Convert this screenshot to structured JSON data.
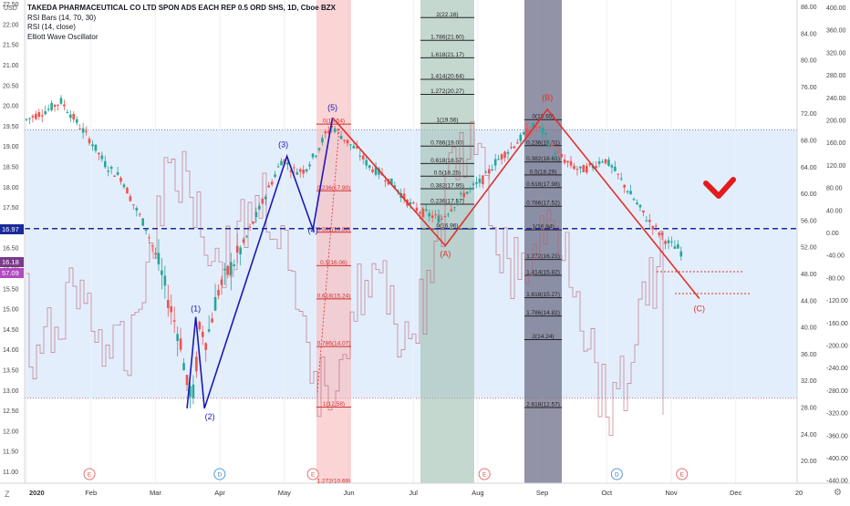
{
  "legend": {
    "title": "TAKEDA PHARMACEUTICAL CO LTD SPON ADS EACH REP 0.5 ORD SHS, 1D, Cboe BZX",
    "line2": "RSI Bars (14, 70, 30)",
    "line3": "RSI (14, close)",
    "line4": "Elliott Wave Oscillator"
  },
  "currency_label": "USD",
  "price_tags": {
    "last": "16.97",
    "close": "16.18",
    "rsi": "57.09"
  },
  "colors": {
    "up": "#26a69a",
    "down": "#ef5350",
    "wave_blue": "#1a1ab4",
    "wave_red": "#e0302a",
    "band": "#d9e8fb",
    "dashed": "#1a2a9a",
    "check": "#e31b1b"
  },
  "chart_data": {
    "type": "candlestick",
    "x_ticks": [
      "2020",
      "Feb",
      "Mar",
      "Apr",
      "May",
      "Jun",
      "Jul",
      "Aug",
      "Sep",
      "Oct",
      "Nov",
      "Dec",
      "20"
    ],
    "left_axis": [
      "22.50",
      "22.00",
      "21.50",
      "21.00",
      "20.50",
      "20.00",
      "19.50",
      "19.00",
      "18.50",
      "18.00",
      "17.50",
      "17.00",
      "16.50",
      "16.00",
      "15.50",
      "15.00",
      "14.50",
      "14.00",
      "13.50",
      "13.00",
      "12.50",
      "12.00",
      "11.50",
      "11.00"
    ],
    "right_axis_price": [
      "88.00",
      "84.00",
      "80.00",
      "76.00",
      "72.00",
      "68.00",
      "64.00",
      "60.00",
      "56.00",
      "52.00",
      "48.00",
      "44.00",
      "40.00",
      "36.00",
      "32.00",
      "28.00",
      "24.00",
      "20.00"
    ],
    "right_axis_osc": [
      "400.00",
      "360.00",
      "320.00",
      "280.00",
      "240.00",
      "200.00",
      "160.00",
      "120.00",
      "80.00",
      "40.00",
      "0.00",
      "-40.00",
      "-80.00",
      "-120.00",
      "-160.00",
      "-200.00",
      "-240.00",
      "-280.00",
      "-320.00",
      "-360.00",
      "-400.00",
      "-440.00"
    ],
    "close_price": 16.97,
    "band_upper": 19.4,
    "band_lower": 12.8,
    "wave_labels": [
      {
        "label": "(1)",
        "date": "2020-03-19",
        "price": 14.8,
        "color": "blue"
      },
      {
        "label": "(2)",
        "date": "2020-03-23",
        "price": 12.55,
        "color": "blue"
      },
      {
        "label": "(3)",
        "date": "2020-04-30",
        "price": 18.75,
        "color": "blue"
      },
      {
        "label": "(4)",
        "date": "2020-05-12",
        "price": 16.95,
        "color": "blue"
      },
      {
        "label": "(5)",
        "date": "2020-05-21",
        "price": 19.7,
        "color": "blue"
      },
      {
        "label": "(A)",
        "date": "2020-07-12",
        "price": 16.55,
        "color": "red"
      },
      {
        "label": "(B)",
        "date": "2020-08-28",
        "price": 19.9,
        "color": "red"
      },
      {
        "label": "(C)",
        "date": "2020-11-06",
        "price": 15.25,
        "color": "red"
      }
    ],
    "fib_blocks": [
      {
        "name": "red",
        "color": "#f9b9b9",
        "levels": [
          {
            "label": "0(19.54)",
            "price": 19.54
          },
          {
            "label": "0.236(17.90)",
            "price": 17.9
          },
          {
            "label": "0.382(16.88)",
            "price": 16.88
          },
          {
            "label": "0.5(16.06)",
            "price": 16.06
          },
          {
            "label": "0.618(15.24)",
            "price": 15.24
          },
          {
            "label": "0.786(14.07)",
            "price": 14.07
          },
          {
            "label": "1(12.58)",
            "price": 12.58
          },
          {
            "label": "1.272(10.69)",
            "price": 10.69
          }
        ]
      },
      {
        "name": "green",
        "color": "#9fbeb0",
        "levels": [
          {
            "label": "2(22.16)",
            "price": 22.16
          },
          {
            "label": "1.786(21.60)",
            "price": 21.6
          },
          {
            "label": "1.618(21.17)",
            "price": 21.17
          },
          {
            "label": "1.414(20.64)",
            "price": 20.64
          },
          {
            "label": "1.272(20.27)",
            "price": 20.27
          },
          {
            "label": "1(19.56)",
            "price": 19.56
          },
          {
            "label": "0.786(19.00)",
            "price": 19.0
          },
          {
            "label": "0.618(18.57)",
            "price": 18.57
          },
          {
            "label": "0.5(18.26)",
            "price": 18.26
          },
          {
            "label": "0.382(17.95)",
            "price": 17.95
          },
          {
            "label": "0.236(17.57)",
            "price": 17.57
          },
          {
            "label": "0(16.96)",
            "price": 16.96
          }
        ]
      },
      {
        "name": "dark",
        "color": "#6d6f8a",
        "levels": [
          {
            "label": "0(19.65)",
            "price": 19.65
          },
          {
            "label": "0.236(19.01)",
            "price": 19.01
          },
          {
            "label": "0.382(18.61)",
            "price": 18.61
          },
          {
            "label": "0.5(18.29)",
            "price": 18.29
          },
          {
            "label": "0.618(17.98)",
            "price": 17.98
          },
          {
            "label": "0.786(17.52)",
            "price": 17.52
          },
          {
            "label": "1(16.94)",
            "price": 16.94
          },
          {
            "label": "1.272(16.21)",
            "price": 16.21
          },
          {
            "label": "1.414(15.82)",
            "price": 15.82
          },
          {
            "label": "1.618(15.27)",
            "price": 15.27
          },
          {
            "label": "1.786(14.82)",
            "price": 14.82
          },
          {
            "label": "2(14.24)",
            "price": 14.24
          },
          {
            "label": "2.618(12.57)",
            "price": 12.57
          }
        ]
      }
    ],
    "event_markers": [
      {
        "label": "E",
        "date": "2020-01-30"
      },
      {
        "label": "D",
        "date": "2020-03-30"
      },
      {
        "label": "E",
        "date": "2020-05-12"
      },
      {
        "label": "E",
        "date": "2020-07-30"
      },
      {
        "label": "D",
        "date": "2020-09-29"
      },
      {
        "label": "E",
        "date": "2020-10-29"
      }
    ]
  }
}
